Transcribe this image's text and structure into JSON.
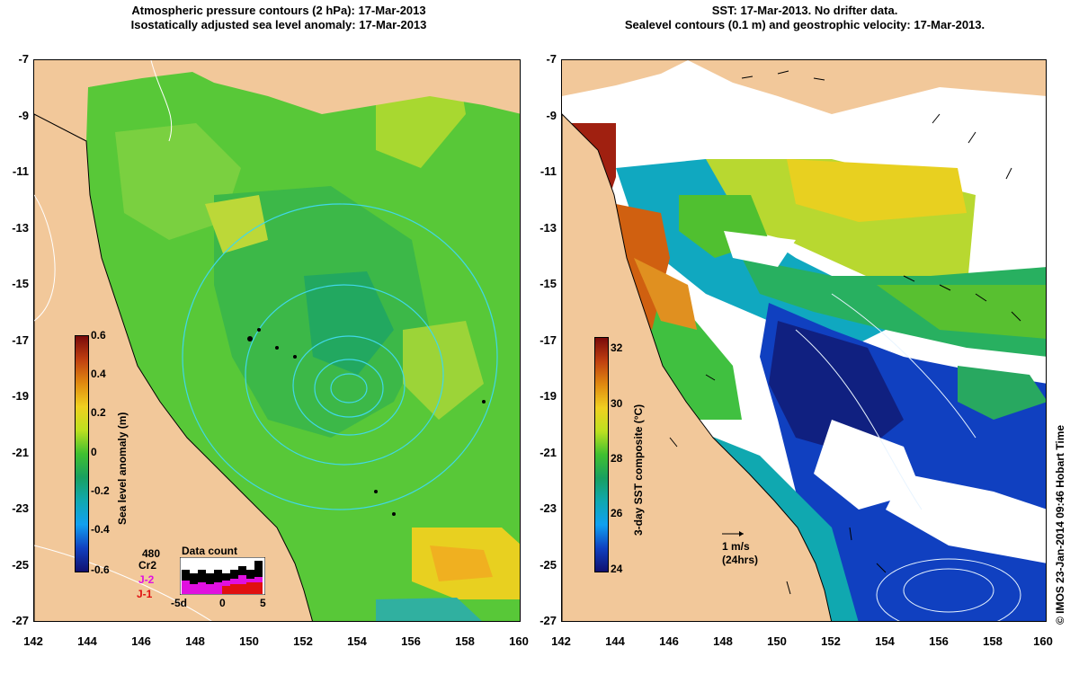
{
  "titles": {
    "left_line1": "Atmospheric pressure contours (2 hPa): 17-Mar-2013",
    "left_line2": "Isostatically adjusted sea level anomaly: 17-Mar-2013",
    "right_line1": "SST: 17-Mar-2013. No drifter data.",
    "right_line2": "Sealevel contours (0.1 m) and geostrophic velocity: 17-Mar-2013."
  },
  "axes": {
    "y_ticks": [
      "-7",
      "-9",
      "-11",
      "-13",
      "-15",
      "-17",
      "-19",
      "-21",
      "-23",
      "-25",
      "-27"
    ],
    "x_ticks": [
      "142",
      "144",
      "146",
      "148",
      "150",
      "152",
      "154",
      "156",
      "158",
      "160"
    ]
  },
  "left_colorbar": {
    "label": "Sea level anomaly (m)",
    "ticks": [
      "0.6",
      "0.4",
      "0.2",
      "0",
      "-0.2",
      "-0.4",
      "-0.6"
    ],
    "colors": [
      "#7a0a0a",
      "#c04010",
      "#e08a10",
      "#f0d020",
      "#bde020",
      "#40c030",
      "#18a060",
      "#10a8b0",
      "#10a0f0",
      "#1040c0",
      "#101070"
    ]
  },
  "right_colorbar": {
    "label": "3-day SST composite (°C)",
    "ticks": [
      "32",
      "30",
      "28",
      "26",
      "24"
    ],
    "colors": [
      "#7a0a0a",
      "#c04010",
      "#e08a10",
      "#f0d020",
      "#bde020",
      "#40c030",
      "#18a060",
      "#10a8b0",
      "#10a0f0",
      "#1040c0",
      "#101070"
    ]
  },
  "data_count": {
    "title": "Data count",
    "top_value": "480",
    "missions": [
      {
        "name": "Cr2",
        "color": "#000000"
      },
      {
        "name": "J-2",
        "color": "#e010e0"
      },
      {
        "name": "J-1",
        "color": "#e01010"
      }
    ],
    "x_ticks": [
      "-5d",
      "0",
      "5"
    ]
  },
  "velocity_key": {
    "label": "1 m/s",
    "sublabel": "(24hrs)"
  },
  "copyright": "© IMOS 23-Jan-2014 09:46 Hobart Time",
  "colors": {
    "land": "#f2c89a",
    "no_data": "#ffffff"
  }
}
